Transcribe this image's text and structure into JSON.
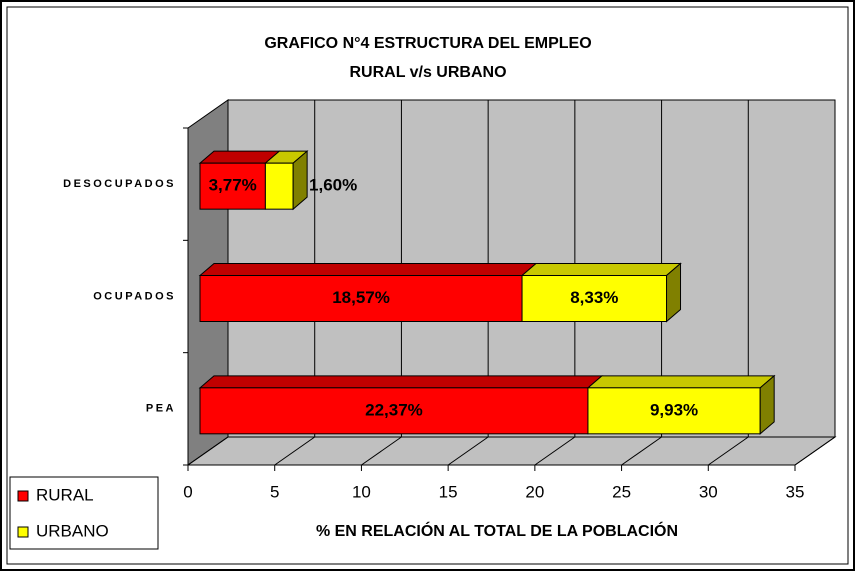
{
  "chart_data": {
    "type": "bar",
    "orientation": "horizontal",
    "stacked": true,
    "title": "GRAFICO N°4  ESTRUCTURA DEL EMPLEO",
    "subtitle": "RURAL v/s URBANO",
    "xlabel": "% EN RELACIÓN AL TOTAL DE LA POBLACIÓN",
    "categories": [
      "DESOCUPADOS",
      "OCUPADOS",
      "PEA"
    ],
    "series": [
      {
        "name": "RURAL",
        "color": "#ff0000",
        "values": [
          3.77,
          18.57,
          22.37
        ],
        "value_labels": [
          "3,77%",
          "18,57%",
          "22,37%"
        ]
      },
      {
        "name": "URBANO",
        "color": "#ffff00",
        "values": [
          1.6,
          8.33,
          9.93
        ],
        "value_labels": [
          "1,60%",
          "8,33%",
          "9,93%"
        ]
      }
    ],
    "xlim": [
      0,
      35
    ],
    "xticks": [
      0,
      5,
      10,
      15,
      20,
      25,
      30,
      35
    ],
    "grid": true,
    "legend": "lower left"
  }
}
